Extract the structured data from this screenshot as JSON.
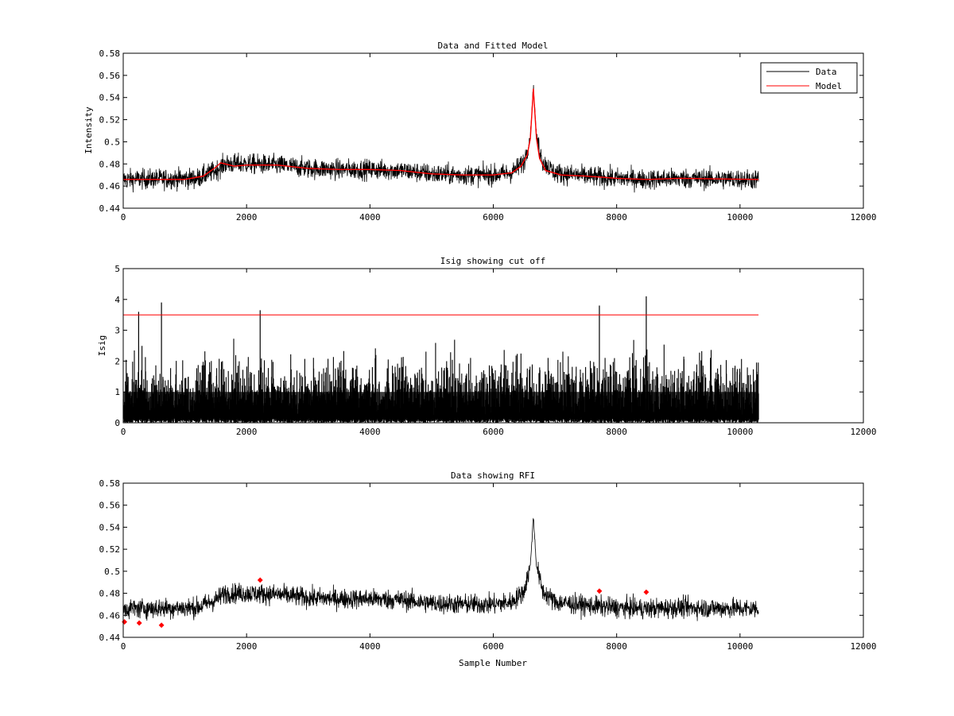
{
  "figure": {
    "background": "#ffffff",
    "xlabel_bottom": "Sample Number"
  },
  "colors": {
    "data": "#000000",
    "model": "#ff0000",
    "cutoff": "#ff0000",
    "rfi_marker": "#ff0000"
  },
  "chart_data": [
    {
      "type": "line",
      "title": "Data and Fitted Model",
      "xlabel": "",
      "ylabel": "Intensity",
      "xlim": [
        0,
        12000
      ],
      "ylim": [
        0.44,
        0.58
      ],
      "xticks": [
        0,
        2000,
        4000,
        6000,
        8000,
        10000,
        12000
      ],
      "xtick_labels": [
        "0",
        "2000",
        "4000",
        "6000",
        "8000",
        "10000",
        "12000"
      ],
      "yticks": [
        0.44,
        0.46,
        0.48,
        0.5,
        0.52,
        0.54,
        0.56,
        0.58
      ],
      "ytick_labels": [
        "0.44",
        "0.46",
        "0.48",
        "0.5",
        "0.52",
        "0.54",
        "0.56",
        "0.58"
      ],
      "legend_position": "top-right",
      "legend": [
        "Data",
        "Model"
      ],
      "series": [
        {
          "name": "Data",
          "x_range": [
            0,
            10300
          ],
          "noise": 0.0045,
          "envelope": [
            [
              0,
              0.466
            ],
            [
              1200,
              0.467
            ],
            [
              1500,
              0.474
            ],
            [
              1650,
              0.48
            ],
            [
              2000,
              0.48
            ],
            [
              2500,
              0.479
            ],
            [
              3000,
              0.476
            ],
            [
              3500,
              0.475
            ],
            [
              4000,
              0.475
            ],
            [
              4500,
              0.474
            ],
            [
              5000,
              0.471
            ],
            [
              5500,
              0.47
            ],
            [
              6000,
              0.47
            ],
            [
              6300,
              0.472
            ],
            [
              6500,
              0.482
            ],
            [
              6600,
              0.505
            ],
            [
              6650,
              0.55
            ],
            [
              6700,
              0.505
            ],
            [
              6800,
              0.482
            ],
            [
              7000,
              0.472
            ],
            [
              7500,
              0.469
            ],
            [
              8000,
              0.467
            ],
            [
              8500,
              0.466
            ],
            [
              9000,
              0.467
            ],
            [
              10300,
              0.466
            ]
          ]
        },
        {
          "name": "Model",
          "points": [
            [
              0,
              0.466
            ],
            [
              1000,
              0.466
            ],
            [
              1300,
              0.469
            ],
            [
              1500,
              0.477
            ],
            [
              1580,
              0.481
            ],
            [
              1800,
              0.478
            ],
            [
              2000,
              0.479
            ],
            [
              2500,
              0.479
            ],
            [
              3000,
              0.476
            ],
            [
              3500,
              0.475
            ],
            [
              4000,
              0.475
            ],
            [
              4500,
              0.474
            ],
            [
              5000,
              0.471
            ],
            [
              5500,
              0.47
            ],
            [
              6000,
              0.47
            ],
            [
              6300,
              0.472
            ],
            [
              6450,
              0.478
            ],
            [
              6550,
              0.488
            ],
            [
              6600,
              0.503
            ],
            [
              6650,
              0.548
            ],
            [
              6700,
              0.503
            ],
            [
              6750,
              0.485
            ],
            [
              6850,
              0.474
            ],
            [
              7100,
              0.47
            ],
            [
              7500,
              0.469
            ],
            [
              8000,
              0.467
            ],
            [
              8500,
              0.466
            ],
            [
              9000,
              0.467
            ],
            [
              10300,
              0.466
            ]
          ]
        }
      ]
    },
    {
      "type": "line",
      "title": "Isig showing cut off",
      "xlabel": "",
      "ylabel": "Isig",
      "xlim": [
        0,
        12000
      ],
      "ylim": [
        0,
        5
      ],
      "xticks": [
        0,
        2000,
        4000,
        6000,
        8000,
        10000,
        12000
      ],
      "xtick_labels": [
        "0",
        "2000",
        "4000",
        "6000",
        "8000",
        "10000",
        "12000"
      ],
      "yticks": [
        0,
        1,
        2,
        3,
        4,
        5
      ],
      "ytick_labels": [
        "0",
        "1",
        "2",
        "3",
        "4",
        "5"
      ],
      "cutoff": 3.5,
      "x_range": [
        0,
        10300
      ],
      "spikes": [
        [
          250,
          3.6
        ],
        [
          620,
          3.9
        ],
        [
          2220,
          3.65
        ],
        [
          7720,
          3.8
        ],
        [
          8480,
          4.1
        ]
      ]
    },
    {
      "type": "line",
      "title": "Data showing RFI",
      "xlabel": "Sample Number",
      "ylabel": "",
      "xlim": [
        0,
        12000
      ],
      "ylim": [
        0.44,
        0.58
      ],
      "xticks": [
        0,
        2000,
        4000,
        6000,
        8000,
        10000,
        12000
      ],
      "xtick_labels": [
        "0",
        "2000",
        "4000",
        "6000",
        "8000",
        "10000",
        "12000"
      ],
      "yticks": [
        0.44,
        0.46,
        0.48,
        0.5,
        0.52,
        0.54,
        0.56,
        0.58
      ],
      "ytick_labels": [
        "0.44",
        "0.46",
        "0.48",
        "0.5",
        "0.52",
        "0.54",
        "0.56",
        "0.58"
      ],
      "rfi_points": [
        [
          20,
          0.454
        ],
        [
          260,
          0.453
        ],
        [
          620,
          0.451
        ],
        [
          2220,
          0.492
        ],
        [
          7720,
          0.482
        ],
        [
          8480,
          0.481
        ]
      ]
    }
  ]
}
